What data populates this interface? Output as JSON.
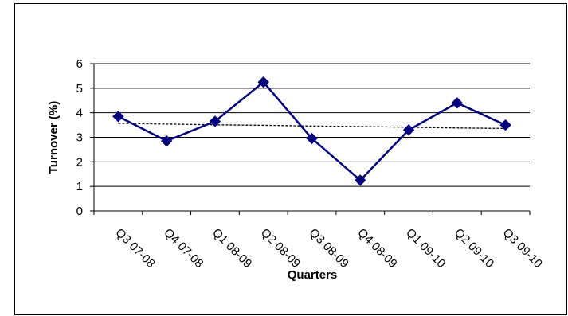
{
  "chart_data": {
    "type": "line",
    "title": "",
    "xlabel": "Quarters",
    "ylabel": "Turnover (%)",
    "categories": [
      "Q3 07-08",
      "Q4 07-08",
      "Q1 08-09",
      "Q2 08-09",
      "Q3 08-09",
      "Q4 08-09",
      "Q1 09-10",
      "Q2 09-10",
      "Q3 09-10"
    ],
    "series": [
      {
        "values": [
          3.85,
          2.85,
          3.65,
          5.25,
          2.95,
          1.25,
          3.3,
          4.4,
          3.5
        ],
        "color": "#000080",
        "marker": "diamond"
      }
    ],
    "trendline": {
      "style": "dotted",
      "color": "#000000",
      "values": [
        3.57,
        3.54,
        3.51,
        3.49,
        3.46,
        3.44,
        3.41,
        3.38,
        3.36
      ]
    },
    "ylim": [
      0,
      6
    ],
    "yticks": [
      0,
      1,
      2,
      3,
      4,
      5,
      6
    ],
    "grid": true,
    "legend": "none"
  }
}
